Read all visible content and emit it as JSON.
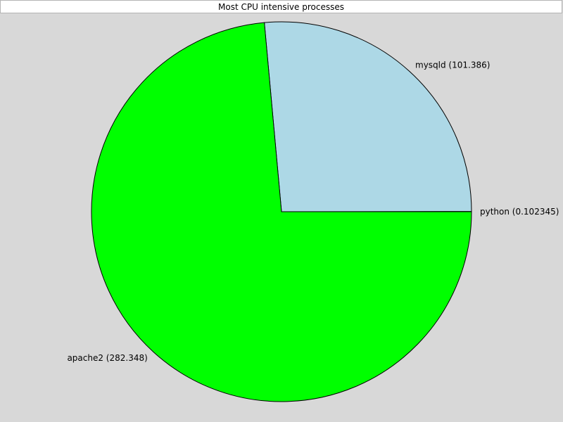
{
  "chart_data": {
    "type": "pie",
    "title": "Most CPU intensive processes",
    "slices": [
      {
        "label": "python",
        "value": 0.102345,
        "display": "python (0.102345)",
        "color": "#000000"
      },
      {
        "label": "mysqld",
        "value": 101.386,
        "display": "mysqld (101.386)",
        "color": "#add8e6"
      },
      {
        "label": "apache2",
        "value": 282.348,
        "display": "apache2 (282.348)",
        "color": "#00ff00"
      }
    ],
    "legend": "none",
    "background": "#d8d8d8"
  }
}
